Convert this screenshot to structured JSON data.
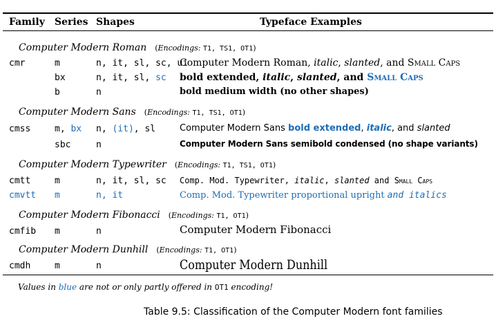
{
  "headers": {
    "family": "Family",
    "series": "Series",
    "shapes": "Shapes",
    "examples": "Typeface Examples"
  },
  "sections": {
    "roman": {
      "name": "Computer Modern Roman",
      "enc_label": "Encodings:",
      "enc": "T1, TS1, OT1"
    },
    "sans": {
      "name": "Computer Modern Sans",
      "enc_label": "Encodings:",
      "enc": "T1, TS1, OT1"
    },
    "typewriter": {
      "name": "Computer Modern Typewriter",
      "enc_label": "Encodings:",
      "enc": "T1, TS1, OT1"
    },
    "fibonacci": {
      "name": "Computer Modern Fibonacci",
      "enc_label": "Encodings:",
      "enc": "T1, OT1"
    },
    "dunhill": {
      "name": "Computer Modern Dunhill",
      "enc_label": "Encodings:",
      "enc": "T1, OT1"
    }
  },
  "rows": {
    "cmr_m": {
      "family": "cmr",
      "series": "m",
      "shapes": "n, it, sl, sc, ui",
      "ex_a": "Computer Modern Roman, ",
      "ex_b": "italic",
      "ex_c": ", ",
      "ex_d": "slanted",
      "ex_e": ", and ",
      "ex_f": "Small Caps"
    },
    "cmr_bx": {
      "series": "bx",
      "shapes_a": "n, it, sl, ",
      "shapes_b": "sc",
      "ex_a": "bold extended, ",
      "ex_b": "italic",
      "ex_c": ", ",
      "ex_d": "slanted",
      "ex_e": ", and ",
      "ex_f": "Small Caps"
    },
    "cmr_b": {
      "series": "b",
      "shapes": "n",
      "ex": "bold medium width (no other shapes)"
    },
    "cmss_m": {
      "family": "cmss",
      "series_a": "m, ",
      "series_b": "bx",
      "shapes_a": "n, ",
      "shapes_b": "(it)",
      "shapes_c": ", sl",
      "ex_a": "Computer Modern Sans ",
      "ex_b": "bold extended",
      "ex_c": ", ",
      "ex_d": "italic",
      "ex_e": ", and ",
      "ex_f": "slanted"
    },
    "cmss_sbc": {
      "series": "sbc",
      "shapes": "n",
      "ex": "Computer Modern Sans semibold condensed (no shape variants)"
    },
    "cmtt_m": {
      "family": "cmtt",
      "series": "m",
      "shapes": "n, it, sl, sc",
      "ex_a": "Comp. Mod. Typewriter, ",
      "ex_b": "italic",
      "ex_c": ", ",
      "ex_d": "slanted",
      "ex_e": " and ",
      "ex_f": "Small Caps"
    },
    "cmvtt_m": {
      "family": "cmvtt",
      "series": "m",
      "shapes": "n, it",
      "ex_a": "Comp. Mod. Typewriter proportional upright ",
      "ex_b": "and italics"
    },
    "cmfib_m": {
      "family": "cmfib",
      "series": "m",
      "shapes": "n",
      "ex": "Computer Modern Fibonacci"
    },
    "cmdh_m": {
      "family": "cmdh",
      "series": "m",
      "shapes": "n",
      "ex": "Computer Modern Dunhill"
    }
  },
  "note": {
    "a": "Values in ",
    "b": "blue",
    "c": " are not or only partly offered in ",
    "d": "OT1",
    "e": " encoding!"
  },
  "caption": "Table 9.5: Classification of the Computer Modern font families",
  "colors": {
    "accent": "#1f6db5"
  }
}
